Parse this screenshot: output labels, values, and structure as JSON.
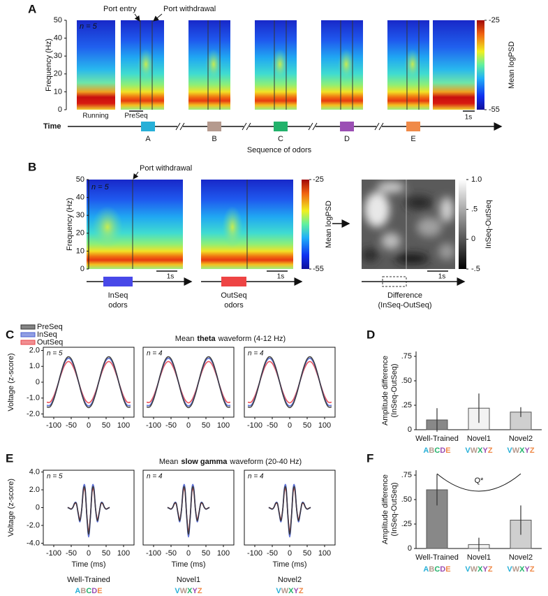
{
  "panel_labels": [
    "A",
    "B",
    "C",
    "D",
    "E",
    "F"
  ],
  "letter_colors": [
    "#27b0d8",
    "#b59a8e",
    "#22b26b",
    "#9b4fb4",
    "#f08a48"
  ],
  "panel_a": {
    "n_label": "n = 5",
    "ylabel": "Frequency (Hz)",
    "ylim": [
      0,
      50
    ],
    "yticks": [
      0,
      10,
      20,
      30,
      40,
      50
    ],
    "annotations": [
      "Port entry",
      "Port withdrawal"
    ],
    "running": "Running",
    "preseq": "PreSeq",
    "scale": "1s",
    "colorbar": {
      "label": "Mean logPSD",
      "lim": [
        -55,
        -25
      ],
      "ticks": [
        -25,
        -55
      ]
    },
    "time": "Time",
    "odors": [
      "A",
      "B",
      "C",
      "D",
      "E"
    ],
    "odor_caption": "Sequence of odors"
  },
  "panel_b": {
    "n_label": "n = 5",
    "ylabel": "Frequency (Hz)",
    "ylim": [
      0,
      50
    ],
    "yticks": [
      0,
      10,
      20,
      30,
      40,
      50
    ],
    "annotation": "Port withdrawal",
    "scale": "1s",
    "colorbar": {
      "label": "Mean logPSD",
      "lim": [
        -55,
        -25
      ],
      "ticks": [
        -25,
        -55
      ]
    },
    "diff_colorbar": {
      "label": "InSeq-OutSeq",
      "lim": [
        -0.5,
        1
      ],
      "ticks": [
        {
          "value": 1,
          "label": "1.0"
        },
        {
          "value": 0.5,
          "label": ".5"
        },
        0,
        {
          "value": -0.5,
          "label": "-.5"
        }
      ]
    },
    "captions": [
      [
        "InSeq",
        "odors"
      ],
      [
        "OutSeq",
        "odors"
      ],
      [
        "Difference",
        "(InSeq-OutSeq)"
      ]
    ],
    "box_colors": [
      "#4848e8",
      "#ee4444"
    ]
  },
  "groups": [
    {
      "name": "Well-Trained",
      "letters": [
        "A",
        "B",
        "C",
        "D",
        "E"
      ]
    },
    {
      "name": "Novel1",
      "letters": [
        "V",
        "W",
        "X",
        "Y",
        "Z"
      ]
    },
    {
      "name": "Novel2",
      "letters": [
        "V",
        "W",
        "X",
        "Y",
        "Z"
      ]
    }
  ],
  "chart_data": [
    {
      "type": "line",
      "title": [
        "Mean",
        "theta",
        "waveform (4-12 Hz)"
      ],
      "ylabel": "Voltage (z-score)",
      "n_label": "n = 5",
      "x": [
        -120,
        -110,
        -100,
        -90,
        -80,
        -70,
        -60,
        -50,
        -40,
        -30,
        -20,
        -10,
        0,
        10,
        20,
        30,
        40,
        50,
        60,
        70,
        80,
        90,
        100,
        110,
        120
      ],
      "xlim": [
        -130,
        130
      ],
      "xticks": [
        -100,
        -50,
        0,
        50,
        100
      ],
      "ylim": [
        -2.2,
        2.2
      ],
      "yticks": [
        {
          "value": 2,
          "label": "2.0"
        },
        {
          "value": 1,
          "label": "1.0"
        },
        0,
        {
          "value": -1,
          "label": "-1.0"
        },
        {
          "value": -2,
          "label": "-2.0"
        }
      ],
      "series": [
        {
          "name": "PreSeq",
          "color": "#333333",
          "values": [
            -1.56,
            -1.54,
            -1.08,
            -0.32,
            0.53,
            1.24,
            1.59,
            1.47,
            0.92,
            0.11,
            -0.74,
            -1.37,
            -1.6,
            -1.37,
            -0.74,
            0.11,
            0.92,
            1.47,
            1.59,
            1.24,
            0.53,
            -0.32,
            -1.08,
            -1.54,
            -1.56
          ]
        },
        {
          "name": "InSeq",
          "color": "#4a5fd0",
          "values": [
            -1.46,
            -1.44,
            -1.02,
            -0.3,
            0.5,
            1.17,
            1.49,
            1.38,
            0.87,
            0.1,
            -0.69,
            -1.28,
            -1.5,
            -1.28,
            -0.69,
            0.1,
            0.87,
            1.38,
            1.49,
            1.17,
            0.5,
            -0.3,
            -1.02,
            -1.44,
            -1.46
          ]
        },
        {
          "name": "OutSeq",
          "color": "#e8444a",
          "values": [
            -1.26,
            -1.25,
            -0.88,
            -0.26,
            0.43,
            1.01,
            1.29,
            1.19,
            0.75,
            0.09,
            -0.6,
            -1.11,
            -1.3,
            -1.11,
            -0.6,
            0.09,
            0.75,
            1.19,
            1.29,
            1.01,
            0.43,
            -0.26,
            -0.88,
            -1.25,
            -1.26
          ]
        }
      ]
    },
    {
      "type": "line",
      "n_label": "n = 4",
      "x": [
        -120,
        -110,
        -100,
        -90,
        -80,
        -70,
        -60,
        -50,
        -40,
        -30,
        -20,
        -10,
        0,
        10,
        20,
        30,
        40,
        50,
        60,
        70,
        80,
        90,
        100,
        110,
        120
      ],
      "xlim": [
        -130,
        130
      ],
      "xticks": [
        -100,
        -50,
        0,
        50,
        100
      ],
      "ylim": [
        -2.2,
        2.2
      ],
      "series": [
        {
          "color": "#333333",
          "values": [
            -1.56,
            -1.54,
            -1.08,
            -0.32,
            0.53,
            1.24,
            1.59,
            1.47,
            0.92,
            0.11,
            -0.74,
            -1.37,
            -1.6,
            -1.37,
            -0.74,
            0.11,
            0.92,
            1.47,
            1.59,
            1.24,
            0.53,
            -0.32,
            -1.08,
            -1.54,
            -1.56
          ]
        },
        {
          "color": "#4a5fd0",
          "values": [
            -1.46,
            -1.44,
            -1.02,
            -0.3,
            0.5,
            1.17,
            1.49,
            1.38,
            0.87,
            0.1,
            -0.69,
            -1.28,
            -1.5,
            -1.28,
            -0.69,
            0.1,
            0.87,
            1.38,
            1.49,
            1.17,
            0.5,
            -0.3,
            -1.02,
            -1.44,
            -1.46
          ]
        },
        {
          "color": "#e8444a",
          "values": [
            -1.26,
            -1.25,
            -0.88,
            -0.26,
            0.43,
            1.01,
            1.29,
            1.19,
            0.75,
            0.09,
            -0.6,
            -1.11,
            -1.3,
            -1.11,
            -0.6,
            0.09,
            0.75,
            1.19,
            1.29,
            1.01,
            0.43,
            -0.26,
            -0.88,
            -1.25,
            -1.26
          ]
        }
      ]
    },
    {
      "type": "line",
      "n_label": "n = 4",
      "x": [
        -120,
        -110,
        -100,
        -90,
        -80,
        -70,
        -60,
        -50,
        -40,
        -30,
        -20,
        -10,
        0,
        10,
        20,
        30,
        40,
        50,
        60,
        70,
        80,
        90,
        100,
        110,
        120
      ],
      "xlim": [
        -130,
        130
      ],
      "xticks": [
        -100,
        -50,
        0,
        50,
        100
      ],
      "ylim": [
        -2.2,
        2.2
      ],
      "series": [
        {
          "color": "#333333",
          "values": [
            -1.56,
            -1.54,
            -1.08,
            -0.32,
            0.53,
            1.24,
            1.59,
            1.47,
            0.92,
            0.11,
            -0.74,
            -1.37,
            -1.6,
            -1.37,
            -0.74,
            0.11,
            0.92,
            1.47,
            1.59,
            1.24,
            0.53,
            -0.32,
            -1.08,
            -1.54,
            -1.56
          ]
        },
        {
          "color": "#4a5fd0",
          "values": [
            -1.46,
            -1.44,
            -1.02,
            -0.3,
            0.5,
            1.17,
            1.49,
            1.38,
            0.87,
            0.1,
            -0.69,
            -1.28,
            -1.5,
            -1.28,
            -0.69,
            0.1,
            0.87,
            1.38,
            1.49,
            1.17,
            0.5,
            -0.3,
            -1.02,
            -1.44,
            -1.46
          ]
        },
        {
          "color": "#e8444a",
          "values": [
            -1.26,
            -1.25,
            -0.88,
            -0.26,
            0.43,
            1.01,
            1.29,
            1.19,
            0.75,
            0.09,
            -0.6,
            -1.11,
            -1.3,
            -1.11,
            -0.6,
            0.09,
            0.75,
            1.19,
            1.29,
            1.01,
            0.43,
            -0.26,
            -0.88,
            -1.25,
            -1.26
          ]
        }
      ]
    },
    {
      "type": "line",
      "title": [
        "Mean",
        "slow gamma",
        "waveform (20-40 Hz)"
      ],
      "ylabel": "Voltage (z-score)",
      "xlabel": "Time (ms)",
      "n_label": "n = 5",
      "x": [
        -60,
        -55,
        -50,
        -45,
        -40,
        -35,
        -30,
        -25,
        -20,
        -15,
        -10,
        -5,
        0,
        5,
        10,
        15,
        20,
        25,
        30,
        35,
        40,
        45,
        50,
        55,
        60
      ],
      "xlim": [
        -130,
        130
      ],
      "xticks": [
        -100,
        -50,
        0,
        50,
        100
      ],
      "ylim": [
        -4.2,
        4.2
      ],
      "yticks": [
        {
          "value": 4,
          "label": "4.0"
        },
        {
          "value": 2,
          "label": "2.0"
        },
        0,
        {
          "value": -2,
          "label": "-2.0"
        },
        {
          "value": -4,
          "label": "-4.0"
        }
      ],
      "series": [
        {
          "color": "#333333",
          "values": [
            0.02,
            -0.08,
            -0.17,
            0.04,
            0.49,
            0.44,
            -0.63,
            -1.46,
            -0.23,
            2.07,
            2.01,
            -1.03,
            -3.0,
            -1.03,
            2.01,
            2.07,
            -0.23,
            -1.46,
            -0.63,
            0.44,
            0.49,
            0.04,
            -0.17,
            -0.08,
            0.02
          ]
        },
        {
          "color": "#4a5fd0",
          "values": [
            0.02,
            -0.09,
            -0.18,
            0.04,
            0.54,
            0.48,
            -0.69,
            -1.6,
            -0.25,
            2.27,
            2.21,
            -1.14,
            -3.3,
            -1.14,
            2.21,
            2.27,
            -0.25,
            -1.6,
            -0.69,
            0.48,
            0.54,
            0.04,
            -0.18,
            -0.09,
            0.02
          ]
        },
        {
          "color": "#e8444a",
          "values": [
            0.02,
            -0.07,
            -0.15,
            0.04,
            0.44,
            0.39,
            -0.56,
            -1.31,
            -0.21,
            1.86,
            1.81,
            -0.93,
            -2.7,
            -0.93,
            1.81,
            1.86,
            -0.21,
            -1.31,
            -0.56,
            0.39,
            0.44,
            0.04,
            -0.15,
            -0.07,
            0.02
          ]
        }
      ]
    },
    {
      "type": "line",
      "xlabel": "Time (ms)",
      "n_label": "n = 4",
      "x": [
        -60,
        -55,
        -50,
        -45,
        -40,
        -35,
        -30,
        -25,
        -20,
        -15,
        -10,
        -5,
        0,
        5,
        10,
        15,
        20,
        25,
        30,
        35,
        40,
        45,
        50,
        55,
        60
      ],
      "xlim": [
        -130,
        130
      ],
      "xticks": [
        -100,
        -50,
        0,
        50,
        100
      ],
      "ylim": [
        -4.2,
        4.2
      ],
      "series": [
        {
          "color": "#333333",
          "values": [
            0.02,
            -0.08,
            -0.17,
            0.04,
            0.49,
            0.44,
            -0.63,
            -1.46,
            -0.23,
            2.07,
            2.01,
            -1.03,
            -3.0,
            -1.03,
            2.01,
            2.07,
            -0.23,
            -1.46,
            -0.63,
            0.44,
            0.49,
            0.04,
            -0.17,
            -0.08,
            0.02
          ]
        },
        {
          "color": "#4a5fd0",
          "values": [
            0.02,
            -0.09,
            -0.18,
            0.04,
            0.54,
            0.48,
            -0.69,
            -1.6,
            -0.25,
            2.27,
            2.21,
            -1.14,
            -3.3,
            -1.14,
            2.21,
            2.27,
            -0.25,
            -1.6,
            -0.69,
            0.48,
            0.54,
            0.04,
            -0.18,
            -0.09,
            0.02
          ]
        },
        {
          "color": "#e8444a",
          "values": [
            0.02,
            -0.07,
            -0.15,
            0.04,
            0.44,
            0.39,
            -0.56,
            -1.31,
            -0.21,
            1.86,
            1.81,
            -0.93,
            -2.7,
            -0.93,
            1.81,
            1.86,
            -0.21,
            -1.31,
            -0.56,
            0.39,
            0.44,
            0.04,
            -0.15,
            -0.07,
            0.02
          ]
        }
      ]
    },
    {
      "type": "line",
      "xlabel": "Time (ms)",
      "n_label": "n = 4",
      "x": [
        -60,
        -55,
        -50,
        -45,
        -40,
        -35,
        -30,
        -25,
        -20,
        -15,
        -10,
        -5,
        0,
        5,
        10,
        15,
        20,
        25,
        30,
        35,
        40,
        45,
        50,
        55,
        60
      ],
      "xlim": [
        -130,
        130
      ],
      "xticks": [
        -100,
        -50,
        0,
        50,
        100
      ],
      "ylim": [
        -4.2,
        4.2
      ],
      "series": [
        {
          "color": "#333333",
          "values": [
            0.02,
            -0.08,
            -0.17,
            0.04,
            0.49,
            0.44,
            -0.63,
            -1.46,
            -0.23,
            2.07,
            2.01,
            -1.03,
            -3.0,
            -1.03,
            2.01,
            2.07,
            -0.23,
            -1.46,
            -0.63,
            0.44,
            0.49,
            0.04,
            -0.17,
            -0.08,
            0.02
          ]
        },
        {
          "color": "#4a5fd0",
          "values": [
            0.02,
            -0.09,
            -0.18,
            0.04,
            0.54,
            0.48,
            -0.69,
            -1.6,
            -0.25,
            2.27,
            2.21,
            -1.14,
            -3.3,
            -1.14,
            2.21,
            2.27,
            -0.25,
            -1.6,
            -0.69,
            0.48,
            0.54,
            0.04,
            -0.18,
            -0.09,
            0.02
          ]
        },
        {
          "color": "#e8444a",
          "values": [
            0.02,
            -0.07,
            -0.15,
            0.04,
            0.44,
            0.39,
            -0.56,
            -1.31,
            -0.21,
            1.86,
            1.81,
            -0.93,
            -2.7,
            -0.93,
            1.81,
            1.86,
            -0.21,
            -1.31,
            -0.56,
            0.39,
            0.44,
            0.04,
            -0.15,
            -0.07,
            0.02
          ]
        }
      ]
    },
    {
      "type": "bar",
      "ylabel": [
        "Amplitude difference",
        "(InSeq-OutSeq)"
      ],
      "categories": [
        "Well-Trained",
        "Novel1",
        "Novel2"
      ],
      "sequences": [
        [
          "A",
          "B",
          "C",
          "D",
          "E"
        ],
        [
          "V",
          "W",
          "X",
          "Y",
          "Z"
        ],
        [
          "V",
          "W",
          "X",
          "Y",
          "Z"
        ]
      ],
      "values": [
        0.1,
        0.22,
        0.18
      ],
      "errors": [
        0.12,
        0.15,
        0.05
      ],
      "colors": [
        "#888888",
        "#f2f2f2",
        "#cfcfcf"
      ],
      "ylim": [
        0,
        0.8
      ],
      "yticks": [
        0,
        {
          "value": 0.25,
          "label": ".25"
        },
        {
          "value": 0.5,
          "label": ".50"
        },
        {
          "value": 0.75,
          "label": ".75"
        }
      ]
    },
    {
      "type": "bar",
      "ylabel": [
        "Amplitude difference",
        "(InSeq-OutSeq)"
      ],
      "annotation": "Q*",
      "categories": [
        "Well-Trained",
        "Novel1",
        "Novel2"
      ],
      "sequences": [
        [
          "A",
          "B",
          "C",
          "D",
          "E"
        ],
        [
          "V",
          "W",
          "X",
          "Y",
          "Z"
        ],
        [
          "V",
          "W",
          "X",
          "Y",
          "Z"
        ]
      ],
      "values": [
        0.6,
        0.04,
        0.29
      ],
      "errors": [
        0.16,
        0.07,
        0.15
      ],
      "colors": [
        "#888888",
        "#f2f2f2",
        "#cfcfcf"
      ],
      "ylim": [
        0,
        0.8
      ],
      "yticks": [
        0,
        {
          "value": 0.25,
          "label": ".25"
        },
        {
          "value": 0.5,
          "label": ".50"
        },
        {
          "value": 0.75,
          "label": ".75"
        }
      ]
    }
  ]
}
